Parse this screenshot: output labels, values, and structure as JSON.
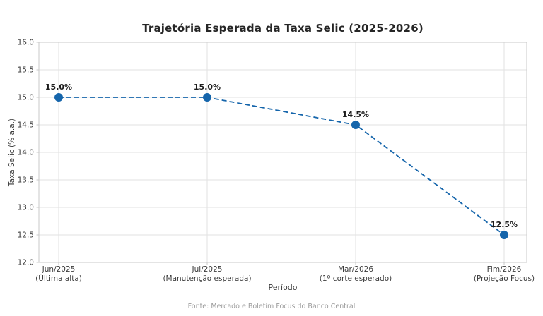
{
  "footer": "Fonte: Mercado e Boletim Focus do Banco Central",
  "chart_data": {
    "type": "line",
    "title": "Trajetória Esperada da Taxa Selic (2025-2026)",
    "xlabel": "Período",
    "ylabel": "Taxa Selic (% a.a.)",
    "categories": [
      {
        "line1": "Jun/2025",
        "line2": "(Última alta)"
      },
      {
        "line1": "Jul/2025",
        "line2": "(Manutenção esperada)"
      },
      {
        "line1": "Mar/2026",
        "line2": "(1º corte esperado)"
      },
      {
        "line1": "Fim/2026",
        "line2": "(Projeção Focus)"
      }
    ],
    "values": [
      15.0,
      15.0,
      14.5,
      12.5
    ],
    "point_labels": [
      "15.0%",
      "15.0%",
      "14.5%",
      "12.5%"
    ],
    "ylim": [
      12.0,
      16.0
    ],
    "ytick_step": 0.5,
    "ytick_labels": [
      "12.0",
      "12.5",
      "13.0",
      "13.5",
      "14.0",
      "14.5",
      "15.0",
      "15.5",
      "16.0"
    ],
    "grid": true,
    "legend": "none",
    "line_style": "dashed",
    "line_color": "#1565ab",
    "marker_color": "#1565ab",
    "grid_color": "#e2e2e2",
    "spine_color": "#c9c9c9",
    "tick_label_color": "#3a3a3a",
    "annotation_color": "#1c1c1c"
  }
}
